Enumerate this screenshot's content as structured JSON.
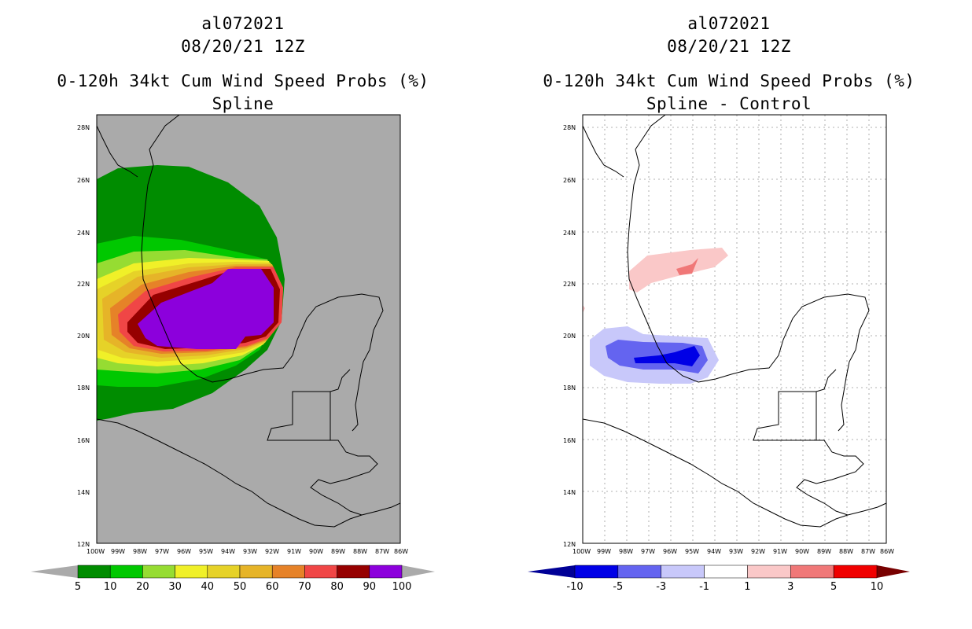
{
  "panels": [
    {
      "id": "left",
      "storm_id": "al072021",
      "datetime": "08/20/21 12Z",
      "product": "0-120h 34kt Cum Wind Speed Probs (%)",
      "subtitle": "Spline",
      "background_color": "#aaaaaa",
      "colorbar": {
        "labels": [
          "5",
          "10",
          "20",
          "30",
          "40",
          "50",
          "60",
          "70",
          "80",
          "90",
          "100"
        ],
        "colors": [
          "#008c00",
          "#00c800",
          "#96dc32",
          "#f0f028",
          "#e6d228",
          "#e6b428",
          "#e68228",
          "#f04646",
          "#960000",
          "#8c00dc"
        ],
        "arrow_colors": [
          "#aaaaaa",
          "#aaaaaa"
        ]
      }
    },
    {
      "id": "right",
      "storm_id": "al072021",
      "datetime": "08/20/21 12Z",
      "product": "0-120h 34kt Cum Wind Speed Probs (%)",
      "subtitle": "Spline - Control",
      "background_color": "#ffffff",
      "colorbar": {
        "labels": [
          "-10",
          "-5",
          "-3",
          "-1",
          "1",
          "3",
          "5",
          "10"
        ],
        "colors": [
          "#0000e6",
          "#6464f0",
          "#c8c8fa",
          "#ffffff",
          "#fac8c8",
          "#f07878",
          "#f00000"
        ],
        "arrow_colors": [
          "#000096",
          "#780000"
        ]
      }
    }
  ],
  "axes": {
    "lat_labels": [
      "28N",
      "26N",
      "24N",
      "22N",
      "20N",
      "18N",
      "16N",
      "14N",
      "12N"
    ],
    "lon_labels": [
      "100W",
      "99W",
      "98W",
      "97W",
      "96W",
      "95W",
      "94W",
      "93W",
      "92W",
      "91W",
      "90W",
      "89W",
      "88W",
      "87W",
      "86W"
    ]
  }
}
